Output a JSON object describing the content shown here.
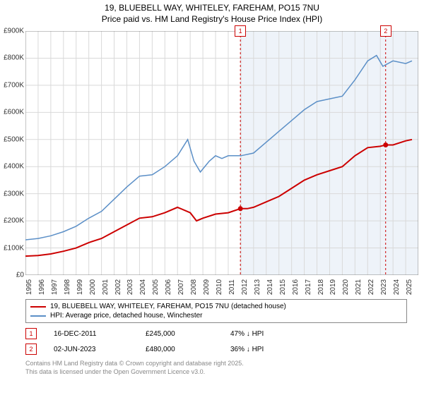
{
  "title_line1": "19, BLUEBELL WAY, WHITELEY, FAREHAM, PO15 7NU",
  "title_line2": "Price paid vs. HM Land Registry's House Price Index (HPI)",
  "chart": {
    "type": "line",
    "background_color": "#ffffff",
    "grid_color": "#d9d9d9",
    "shade_color": "#eef3f9",
    "shade_x_start": 2011.96,
    "shade_x_end": 2026,
    "xlim": [
      1995,
      2026
    ],
    "ylim": [
      0,
      900000
    ],
    "ytick_step": 100000,
    "ytick_labels": [
      "£0",
      "£100K",
      "£200K",
      "£300K",
      "£400K",
      "£500K",
      "£600K",
      "£700K",
      "£800K",
      "£900K"
    ],
    "xtick_years": [
      1995,
      1996,
      1997,
      1998,
      1999,
      2000,
      2001,
      2002,
      2003,
      2004,
      2005,
      2006,
      2007,
      2008,
      2009,
      2010,
      2011,
      2012,
      2013,
      2014,
      2015,
      2016,
      2017,
      2018,
      2019,
      2020,
      2021,
      2022,
      2023,
      2024,
      2025
    ],
    "series": [
      {
        "name": "price_paid",
        "color": "#cc0000",
        "line_width": 2,
        "points": [
          [
            1995,
            70000
          ],
          [
            1996,
            72000
          ],
          [
            1997,
            78000
          ],
          [
            1998,
            88000
          ],
          [
            1999,
            100000
          ],
          [
            2000,
            120000
          ],
          [
            2001,
            135000
          ],
          [
            2002,
            160000
          ],
          [
            2003,
            185000
          ],
          [
            2004,
            210000
          ],
          [
            2005,
            215000
          ],
          [
            2006,
            230000
          ],
          [
            2007,
            250000
          ],
          [
            2008,
            230000
          ],
          [
            2008.5,
            200000
          ],
          [
            2009,
            210000
          ],
          [
            2010,
            225000
          ],
          [
            2011,
            230000
          ],
          [
            2011.96,
            245000
          ],
          [
            2012.5,
            245000
          ],
          [
            2013,
            250000
          ],
          [
            2014,
            270000
          ],
          [
            2015,
            290000
          ],
          [
            2016,
            320000
          ],
          [
            2017,
            350000
          ],
          [
            2018,
            370000
          ],
          [
            2019,
            385000
          ],
          [
            2020,
            400000
          ],
          [
            2021,
            440000
          ],
          [
            2022,
            470000
          ],
          [
            2023,
            475000
          ],
          [
            2023.42,
            480000
          ],
          [
            2024,
            480000
          ],
          [
            2025,
            495000
          ],
          [
            2025.5,
            500000
          ]
        ]
      },
      {
        "name": "hpi",
        "color": "#5b8fc7",
        "line_width": 1.5,
        "points": [
          [
            1995,
            130000
          ],
          [
            1996,
            135000
          ],
          [
            1997,
            145000
          ],
          [
            1998,
            160000
          ],
          [
            1999,
            180000
          ],
          [
            2000,
            210000
          ],
          [
            2001,
            235000
          ],
          [
            2002,
            280000
          ],
          [
            2003,
            325000
          ],
          [
            2004,
            365000
          ],
          [
            2005,
            370000
          ],
          [
            2006,
            400000
          ],
          [
            2007,
            440000
          ],
          [
            2007.8,
            500000
          ],
          [
            2008.3,
            420000
          ],
          [
            2008.8,
            380000
          ],
          [
            2009.5,
            420000
          ],
          [
            2010,
            440000
          ],
          [
            2010.5,
            430000
          ],
          [
            2011,
            440000
          ],
          [
            2012,
            440000
          ],
          [
            2013,
            450000
          ],
          [
            2014,
            490000
          ],
          [
            2015,
            530000
          ],
          [
            2016,
            570000
          ],
          [
            2017,
            610000
          ],
          [
            2018,
            640000
          ],
          [
            2019,
            650000
          ],
          [
            2020,
            660000
          ],
          [
            2021,
            720000
          ],
          [
            2022,
            790000
          ],
          [
            2022.7,
            810000
          ],
          [
            2023.2,
            770000
          ],
          [
            2024,
            790000
          ],
          [
            2025,
            780000
          ],
          [
            2025.5,
            790000
          ]
        ]
      }
    ],
    "sale_markers": [
      {
        "n": 1,
        "x": 2011.96,
        "y": 245000,
        "color": "#cc0000"
      },
      {
        "n": 2,
        "x": 2023.42,
        "y": 480000,
        "color": "#cc0000"
      }
    ],
    "marker_dash_color": "#cc0000"
  },
  "legend": {
    "items": [
      {
        "color": "#cc0000",
        "label": "19, BLUEBELL WAY, WHITELEY, FAREHAM, PO15 7NU (detached house)"
      },
      {
        "color": "#5b8fc7",
        "label": "HPI: Average price, detached house, Winchester"
      }
    ]
  },
  "sales": [
    {
      "n": "1",
      "color": "#cc0000",
      "date": "16-DEC-2011",
      "price": "£245,000",
      "hpi": "47% ↓ HPI"
    },
    {
      "n": "2",
      "color": "#cc0000",
      "date": "02-JUN-2023",
      "price": "£480,000",
      "hpi": "36% ↓ HPI"
    }
  ],
  "footnote_line1": "Contains HM Land Registry data © Crown copyright and database right 2025.",
  "footnote_line2": "This data is licensed under the Open Government Licence v3.0."
}
